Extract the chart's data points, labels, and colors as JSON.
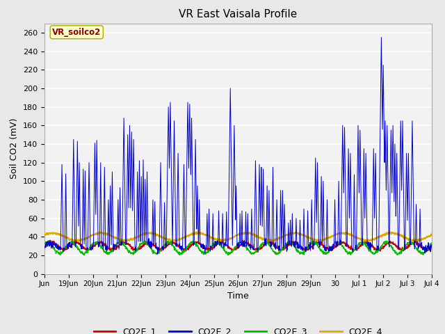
{
  "title": "VR East Vaisala Profile",
  "xlabel": "Time",
  "ylabel": "Soil CO2 (mV)",
  "annotation": "VR_soilco2",
  "annotation_color": "#8B0000",
  "annotation_bg": "#FFFFCC",
  "annotation_edge": "#AAAA00",
  "ylim": [
    0,
    270
  ],
  "yticks": [
    0,
    20,
    40,
    60,
    80,
    100,
    120,
    140,
    160,
    180,
    200,
    220,
    240,
    260
  ],
  "fig_bg": "#E8E8E8",
  "plot_bg": "#F2F2F2",
  "grid_color": "#FFFFFF",
  "line_colors": {
    "CO2E_1": "#CC0000",
    "CO2E_2": "#0000CC",
    "CO2E_3": "#00BB00",
    "CO2E_4": "#DDAA00"
  },
  "tick_labels": [
    "Jun",
    "19Jun",
    "20Jun",
    "21Jun",
    "22Jun",
    "23Jun",
    "24Jun",
    "25Jun",
    "26Jun",
    "27Jun",
    "28Jun",
    "29Jun",
    "30",
    "Jul 1",
    "Jul 2",
    "Jul 3",
    "Jul 4"
  ],
  "legend_labels": [
    "CO2E_1",
    "CO2E_2",
    "CO2E_3",
    "CO2E_4"
  ]
}
